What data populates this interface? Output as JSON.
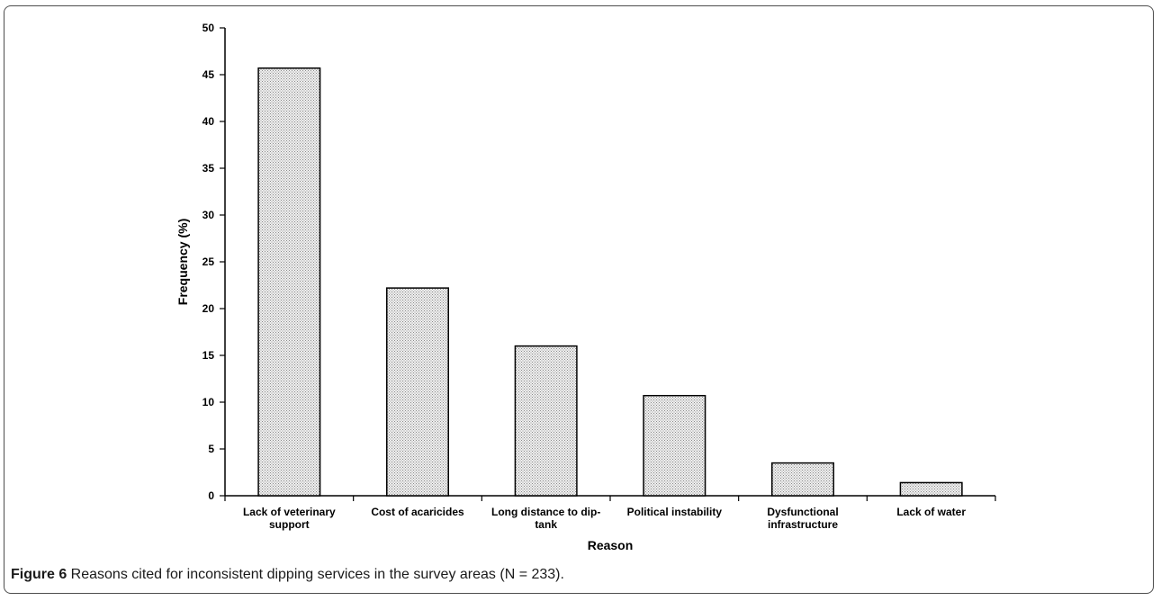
{
  "chart_data": {
    "type": "bar",
    "categories": [
      [
        "Lack of veterinary",
        "support"
      ],
      [
        "Cost of acaricides"
      ],
      [
        "Long distance to dip-",
        "tank"
      ],
      [
        "Political instability"
      ],
      [
        "Dysfunctional",
        "infrastructure"
      ],
      [
        "Lack of water"
      ]
    ],
    "values": [
      45.7,
      22.2,
      16.0,
      10.7,
      3.5,
      1.4
    ],
    "yticks": [
      "0",
      "5",
      "10",
      "15",
      "20",
      "25",
      "30",
      "35",
      "40",
      "45",
      "50"
    ],
    "ylim": [
      0,
      50
    ],
    "xlabel": "Reason",
    "ylabel": "Frequency (%)",
    "bar_fill": "#dcdcdc",
    "bar_stroke": "#000000",
    "grid": false,
    "legend": "none"
  },
  "caption": {
    "figure_number": "Figure 6",
    "text": " Reasons cited for inconsistent dipping services in the survey areas (N = 233)."
  }
}
